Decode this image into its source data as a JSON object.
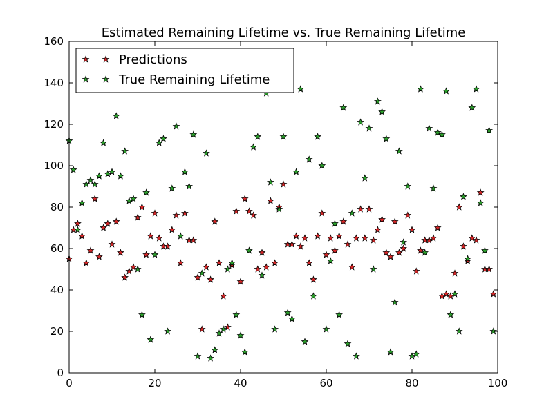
{
  "chart_data": {
    "type": "scatter",
    "title": "Estimated Remaining Lifetime vs. True Remaining Lifetime",
    "xlabel": "",
    "ylabel": "",
    "xlim": [
      0,
      100
    ],
    "ylim": [
      0,
      160
    ],
    "x_ticks": [
      0,
      20,
      40,
      60,
      80,
      100
    ],
    "y_ticks": [
      0,
      20,
      40,
      60,
      80,
      100,
      120,
      140,
      160
    ],
    "grid": false,
    "legend_position": "top-left",
    "series": [
      {
        "name": "Predictions",
        "marker": "star",
        "color": "#d62728",
        "x": [
          0,
          1,
          2,
          3,
          4,
          5,
          6,
          7,
          8,
          9,
          10,
          11,
          12,
          13,
          14,
          15,
          16,
          17,
          18,
          19,
          20,
          21,
          22,
          23,
          24,
          25,
          26,
          27,
          28,
          29,
          30,
          31,
          32,
          33,
          34,
          35,
          36,
          37,
          38,
          39,
          40,
          41,
          42,
          43,
          44,
          45,
          46,
          47,
          48,
          49,
          50,
          51,
          52,
          53,
          54,
          55,
          56,
          57,
          58,
          59,
          60,
          61,
          62,
          63,
          64,
          65,
          66,
          67,
          68,
          69,
          70,
          71,
          72,
          73,
          74,
          75,
          76,
          77,
          78,
          79,
          80,
          81,
          82,
          83,
          84,
          85,
          86,
          87,
          88,
          89,
          90,
          91,
          92,
          93,
          94,
          95,
          96,
          97,
          98,
          99
        ],
        "y": [
          55,
          69,
          72,
          66,
          53,
          59,
          84,
          56,
          70,
          72,
          62,
          73,
          58,
          46,
          49,
          51,
          75,
          80,
          57,
          66,
          77,
          65,
          61,
          61,
          69,
          76,
          53,
          77,
          64,
          64,
          46,
          21,
          51,
          45,
          73,
          53,
          37,
          22,
          52,
          78,
          44,
          84,
          78,
          76,
          50,
          58,
          51,
          83,
          53,
          80,
          91,
          62,
          62,
          66,
          61,
          65,
          53,
          45,
          66,
          77,
          57,
          65,
          59,
          66,
          73,
          62,
          51,
          65,
          79,
          65,
          79,
          64,
          69,
          74,
          58,
          56,
          73,
          58,
          60,
          76,
          69,
          49,
          59,
          64,
          64,
          65,
          70,
          37,
          38,
          37,
          48,
          80,
          61,
          54,
          65,
          64,
          87,
          50,
          50,
          38
        ]
      },
      {
        "name": "True Remaining Lifetime",
        "marker": "star",
        "color": "#2ca02c",
        "x": [
          0,
          1,
          2,
          3,
          4,
          5,
          6,
          7,
          8,
          9,
          10,
          11,
          12,
          13,
          14,
          15,
          16,
          17,
          18,
          19,
          20,
          21,
          22,
          23,
          24,
          25,
          26,
          27,
          28,
          29,
          30,
          31,
          32,
          33,
          34,
          35,
          36,
          37,
          38,
          39,
          40,
          41,
          42,
          43,
          44,
          45,
          46,
          47,
          48,
          49,
          50,
          51,
          52,
          53,
          54,
          55,
          56,
          57,
          58,
          59,
          60,
          61,
          62,
          63,
          64,
          65,
          66,
          67,
          68,
          69,
          70,
          71,
          72,
          73,
          74,
          75,
          76,
          77,
          78,
          79,
          80,
          81,
          82,
          83,
          84,
          85,
          86,
          87,
          88,
          89,
          90,
          91,
          92,
          93,
          94,
          95,
          96,
          97,
          98,
          99
        ],
        "y": [
          112,
          98,
          69,
          82,
          91,
          93,
          91,
          95,
          111,
          96,
          97,
          124,
          95,
          107,
          83,
          84,
          50,
          28,
          87,
          16,
          57,
          111,
          113,
          20,
          89,
          119,
          66,
          97,
          90,
          115,
          8,
          48,
          106,
          7,
          11,
          19,
          21,
          50,
          53,
          28,
          18,
          10,
          59,
          109,
          114,
          47,
          135,
          92,
          21,
          79,
          114,
          29,
          26,
          97,
          137,
          15,
          103,
          37,
          114,
          100,
          21,
          54,
          72,
          28,
          128,
          14,
          77,
          8,
          121,
          94,
          118,
          50,
          131,
          126,
          113,
          10,
          34,
          107,
          63,
          90,
          8,
          9,
          137,
          58,
          118,
          89,
          116,
          115,
          136,
          28,
          38,
          20,
          85,
          55,
          128,
          137,
          82,
          59,
          117,
          20
        ]
      }
    ]
  }
}
